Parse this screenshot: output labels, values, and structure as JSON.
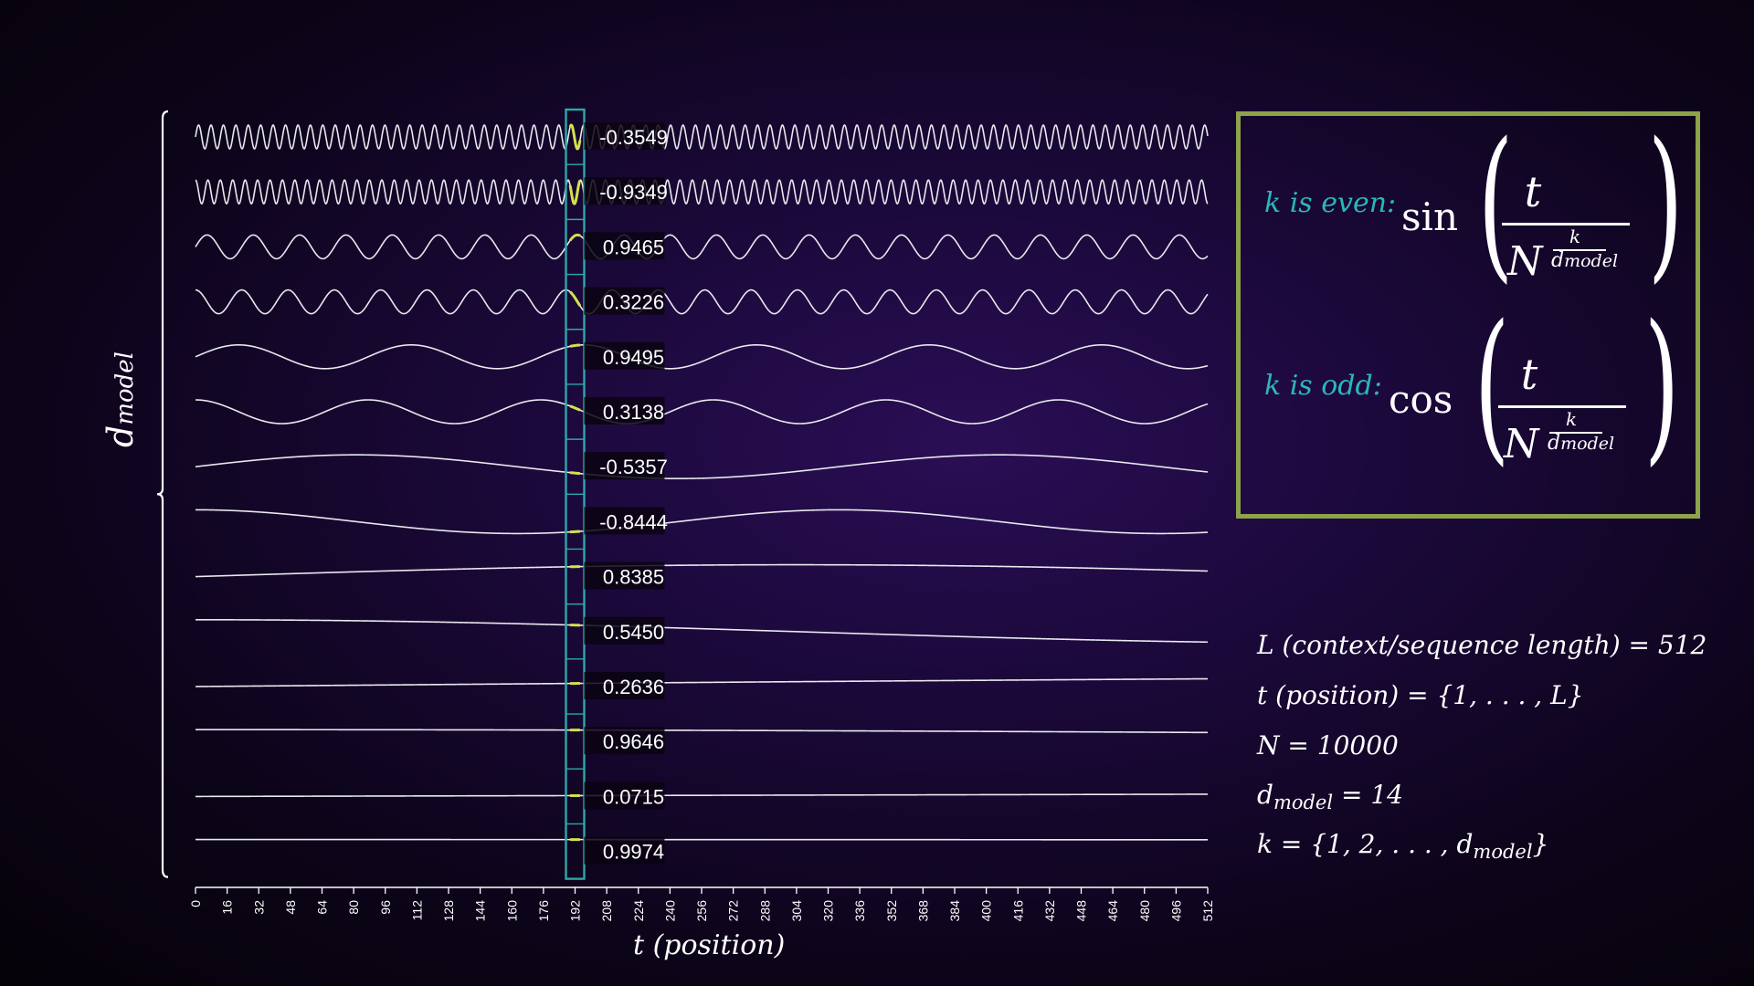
{
  "chart_data": {
    "type": "line",
    "xlabel": "t (position)",
    "ylabel": "d_model",
    "xlim": [
      0,
      512
    ],
    "x_ticks": [
      0,
      16,
      32,
      48,
      64,
      80,
      96,
      112,
      128,
      144,
      160,
      176,
      192,
      208,
      224,
      240,
      256,
      272,
      288,
      304,
      320,
      336,
      352,
      368,
      384,
      400,
      416,
      432,
      448,
      464,
      480,
      496,
      512
    ],
    "highlight_position": 192,
    "highlight_values": [
      "-0.3549",
      "-0.9349",
      "0.9465",
      "0.3226",
      "0.9495",
      "0.3138",
      "-0.5357",
      "-0.8444",
      "0.8385",
      "0.5450",
      "0.2636",
      "0.9646",
      "0.0715",
      "0.9974"
    ],
    "series_count": 14,
    "N": 10000,
    "d_model": 14,
    "grid": false,
    "line_color": "#e8e8ee",
    "highlight_color": "#d6e04a",
    "cursor_color": "#2aa9a8"
  },
  "formula": {
    "even_label": "k is even:",
    "even_fn": "sin",
    "odd_label": "k is odd:",
    "odd_fn": "cos",
    "numerator": "t",
    "base": "N",
    "exp_num": "k",
    "exp_den_main": "d",
    "exp_den_sub": "model",
    "border_color": "#8da24a",
    "label_color": "#2bb7b9"
  },
  "params": {
    "line1": "L (context/sequence length) = 512",
    "line2": "t (position) = {1, . . . , L}",
    "line3": "N = 10000",
    "line4_main": "d",
    "line4_sub": "model",
    "line4_rest": " = 14",
    "line5_start": "k = {1, 2, . . . , d",
    "line5_sub": "model",
    "line5_end": "}"
  },
  "axis": {
    "y_main": "d",
    "y_sub": "model",
    "x_label": "t (position)"
  }
}
